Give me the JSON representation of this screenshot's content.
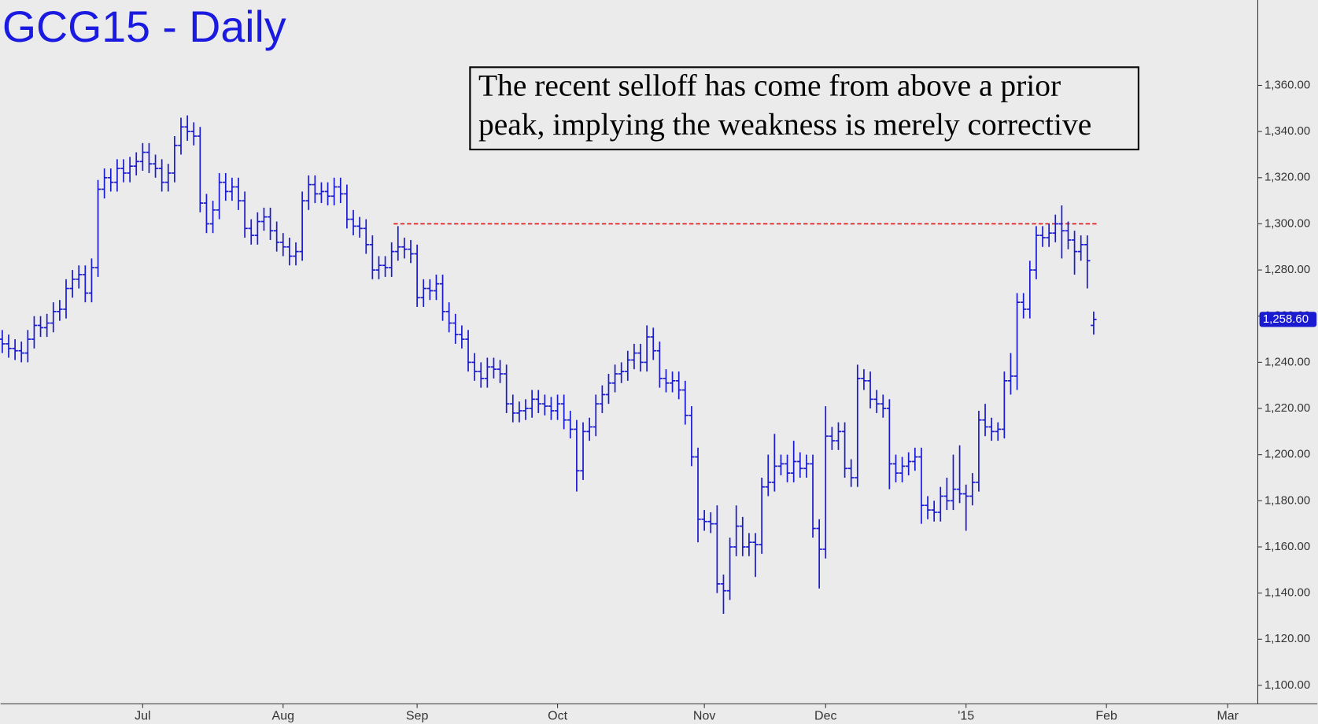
{
  "chart_data": {
    "type": "ohlc",
    "title": "GCG15 - Daily",
    "annotation": [
      "The recent selloff has come from above a prior",
      "peak, implying the weakness is merely corrective"
    ],
    "categories": [
      null,
      null,
      null,
      null,
      null,
      null,
      null,
      null,
      null,
      null,
      null,
      null,
      null,
      null,
      null,
      null,
      null,
      null,
      null,
      null,
      null,
      null,
      "Jul",
      null,
      null,
      null,
      null,
      null,
      null,
      null,
      null,
      null,
      null,
      null,
      null,
      null,
      null,
      null,
      null,
      null,
      null,
      null,
      null,
      null,
      "Aug",
      null,
      null,
      null,
      null,
      null,
      null,
      null,
      null,
      null,
      null,
      null,
      null,
      null,
      null,
      null,
      null,
      null,
      null,
      null,
      null,
      "Sep",
      null,
      null,
      null,
      null,
      null,
      null,
      null,
      null,
      null,
      null,
      null,
      null,
      null,
      null,
      null,
      null,
      null,
      null,
      null,
      null,
      null,
      "Oct",
      null,
      null,
      null,
      null,
      null,
      null,
      null,
      null,
      null,
      null,
      null,
      null,
      null,
      null,
      null,
      null,
      null,
      null,
      null,
      null,
      null,
      null,
      "Nov",
      null,
      null,
      null,
      null,
      null,
      null,
      null,
      null,
      null,
      null,
      null,
      null,
      null,
      null,
      null,
      null,
      null,
      null,
      "Dec",
      null,
      null,
      null,
      null,
      null,
      null,
      null,
      null,
      null,
      null,
      null,
      null,
      null,
      null,
      null,
      null,
      null,
      null,
      null,
      null,
      null,
      "'15",
      null,
      null,
      null,
      null,
      null,
      null,
      null,
      null,
      null,
      null,
      null,
      null,
      null,
      null,
      null,
      null,
      null,
      null,
      null,
      null,
      null,
      "Feb",
      null,
      null,
      null,
      null,
      null,
      null,
      null,
      null,
      null,
      null,
      null,
      null,
      null,
      null,
      null,
      null,
      null,
      null,
      "Mar",
      null,
      null,
      null,
      null
    ],
    "open": [
      1250,
      1248,
      1246,
      1245,
      1244,
      1250,
      1256,
      1255,
      1257,
      1262,
      1263,
      1272,
      1276,
      1278,
      1270,
      1281,
      1315,
      1320,
      1318,
      1324,
      1322,
      1325,
      1327,
      1331,
      1326,
      1324,
      1318,
      1322,
      1334,
      1342,
      1340,
      1338,
      1309,
      1300,
      1306,
      1318,
      1314,
      1316,
      1310,
      1298,
      1295,
      1301,
      1303,
      1297,
      1292,
      1290,
      1286,
      1288,
      1310,
      1317,
      1313,
      1314,
      1312,
      1316,
      1313,
      1302,
      1299,
      1298,
      1291,
      1280,
      1282,
      1281,
      1288,
      1290,
      1289,
      1287,
      1268,
      1272,
      1271,
      1274,
      1262,
      1257,
      1252,
      1250,
      1240,
      1236,
      1233,
      1238,
      1237,
      1235,
      1222,
      1218,
      1219,
      1220,
      1224,
      1222,
      1221,
      1219,
      1222,
      1215,
      1211,
      1193,
      1210,
      1212,
      1222,
      1226,
      1231,
      1235,
      1236,
      1241,
      1244,
      1240,
      1251,
      1245,
      1233,
      1231,
      1232,
      1228,
      1217,
      1199,
      1172,
      1171,
      1170,
      1144,
      1141,
      1160,
      1169,
      1160,
      1162,
      1161,
      1186,
      1188,
      1195,
      1196,
      1192,
      1197,
      1194,
      1196,
      1168,
      1159,
      1208,
      1206,
      1210,
      1194,
      1190,
      1233,
      1232,
      1224,
      1222,
      1220,
      1196,
      1192,
      1195,
      1197,
      1199,
      1178,
      1176,
      1175,
      1182,
      1180,
      1185,
      1183,
      1182,
      1188,
      1215,
      1212,
      1210,
      1211,
      1232,
      1234,
      1266,
      1263,
      1280,
      1295,
      1294,
      1296,
      1300,
      1297,
      1293,
      1288,
      1291,
      1256,
      null,
      null,
      null,
      null,
      null,
      null,
      null,
      null,
      null,
      null,
      null,
      null,
      null,
      null,
      null,
      null,
      null,
      null,
      null,
      null,
      null,
      null,
      null,
      null,
      null
    ],
    "high": [
      1254,
      1252,
      1250,
      1249,
      1254,
      1260,
      1260,
      1261,
      1266,
      1267,
      1276,
      1280,
      1282,
      1282,
      1285,
      1319,
      1324,
      1324,
      1328,
      1328,
      1329,
      1331,
      1335,
      1335,
      1330,
      1328,
      1326,
      1338,
      1346,
      1347,
      1344,
      1342,
      1313,
      1310,
      1322,
      1322,
      1320,
      1320,
      1314,
      1302,
      1305,
      1307,
      1307,
      1301,
      1296,
      1294,
      1292,
      1314,
      1321,
      1321,
      1318,
      1318,
      1320,
      1320,
      1317,
      1306,
      1303,
      1302,
      1295,
      1286,
      1286,
      1292,
      1299,
      1294,
      1293,
      1291,
      1276,
      1276,
      1278,
      1278,
      1266,
      1261,
      1256,
      1254,
      1244,
      1240,
      1242,
      1242,
      1241,
      1239,
      1226,
      1223,
      1224,
      1228,
      1228,
      1226,
      1225,
      1226,
      1226,
      1219,
      1215,
      1214,
      1216,
      1226,
      1230,
      1235,
      1239,
      1240,
      1245,
      1248,
      1248,
      1256,
      1255,
      1249,
      1237,
      1236,
      1236,
      1232,
      1221,
      1203,
      1176,
      1175,
      1178,
      1148,
      1164,
      1178,
      1173,
      1166,
      1166,
      1190,
      1200,
      1209,
      1200,
      1200,
      1206,
      1201,
      1200,
      1200,
      1172,
      1221,
      1212,
      1214,
      1214,
      1198,
      1239,
      1237,
      1236,
      1228,
      1226,
      1224,
      1200,
      1199,
      1201,
      1203,
      1203,
      1182,
      1180,
      1186,
      1190,
      1200,
      1204,
      1187,
      1192,
      1219,
      1222,
      1216,
      1214,
      1236,
      1244,
      1270,
      1270,
      1284,
      1299,
      1299,
      1300,
      1304,
      1308,
      1301,
      1297,
      1295,
      1295,
      1262,
      null,
      null,
      null,
      null,
      null,
      null,
      null,
      null,
      null,
      null,
      null,
      null,
      null,
      null,
      null,
      null,
      null,
      null,
      null,
      null,
      null,
      null,
      null,
      null,
      null
    ],
    "low": [
      1244,
      1242,
      1241,
      1240,
      1240,
      1246,
      1251,
      1251,
      1253,
      1258,
      1259,
      1268,
      1272,
      1266,
      1266,
      1277,
      1311,
      1314,
      1314,
      1318,
      1318,
      1321,
      1323,
      1322,
      1320,
      1314,
      1314,
      1318,
      1330,
      1336,
      1334,
      1305,
      1296,
      1296,
      1302,
      1310,
      1310,
      1306,
      1294,
      1291,
      1291,
      1297,
      1293,
      1288,
      1286,
      1282,
      1282,
      1284,
      1306,
      1309,
      1309,
      1308,
      1308,
      1309,
      1298,
      1295,
      1294,
      1287,
      1276,
      1276,
      1277,
      1277,
      1284,
      1285,
      1283,
      1264,
      1264,
      1267,
      1267,
      1258,
      1253,
      1248,
      1246,
      1236,
      1232,
      1229,
      1229,
      1233,
      1231,
      1218,
      1214,
      1214,
      1215,
      1216,
      1218,
      1217,
      1215,
      1215,
      1211,
      1207,
      1184,
      1189,
      1206,
      1208,
      1218,
      1222,
      1227,
      1231,
      1232,
      1237,
      1236,
      1236,
      1241,
      1229,
      1227,
      1227,
      1224,
      1213,
      1195,
      1162,
      1167,
      1166,
      1140,
      1131,
      1137,
      1156,
      1156,
      1156,
      1147,
      1157,
      1182,
      1184,
      1191,
      1188,
      1188,
      1190,
      1190,
      1164,
      1142,
      1155,
      1202,
      1202,
      1190,
      1186,
      1186,
      1228,
      1220,
      1218,
      1216,
      1185,
      1188,
      1188,
      1191,
      1193,
      1170,
      1172,
      1171,
      1171,
      1176,
      1176,
      1179,
      1167,
      1178,
      1184,
      1208,
      1206,
      1206,
      1207,
      1226,
      1228,
      1259,
      1259,
      1276,
      1290,
      1290,
      1292,
      1285,
      1289,
      1278,
      1284,
      1272,
      1252,
      null,
      null,
      null,
      null,
      null,
      null,
      null,
      null,
      null,
      null,
      null,
      null,
      null,
      null,
      null,
      null,
      null,
      null,
      null,
      null,
      null,
      null,
      null,
      null,
      null
    ],
    "close": [
      1248,
      1246,
      1245,
      1244,
      1250,
      1256,
      1255,
      1257,
      1262,
      1263,
      1272,
      1276,
      1278,
      1270,
      1281,
      1315,
      1320,
      1318,
      1324,
      1322,
      1325,
      1327,
      1331,
      1326,
      1324,
      1318,
      1322,
      1334,
      1342,
      1340,
      1338,
      1309,
      1300,
      1306,
      1318,
      1314,
      1316,
      1310,
      1298,
      1295,
      1301,
      1303,
      1297,
      1292,
      1290,
      1286,
      1288,
      1310,
      1317,
      1313,
      1314,
      1312,
      1316,
      1313,
      1302,
      1299,
      1298,
      1291,
      1280,
      1282,
      1281,
      1288,
      1290,
      1289,
      1287,
      1268,
      1272,
      1271,
      1274,
      1262,
      1257,
      1252,
      1250,
      1240,
      1236,
      1233,
      1238,
      1237,
      1235,
      1222,
      1218,
      1219,
      1220,
      1224,
      1222,
      1221,
      1219,
      1222,
      1215,
      1211,
      1193,
      1210,
      1212,
      1222,
      1226,
      1231,
      1235,
      1236,
      1241,
      1244,
      1240,
      1251,
      1245,
      1233,
      1231,
      1232,
      1228,
      1217,
      1199,
      1172,
      1171,
      1170,
      1144,
      1141,
      1160,
      1169,
      1160,
      1162,
      1161,
      1186,
      1188,
      1195,
      1196,
      1192,
      1197,
      1194,
      1196,
      1168,
      1159,
      1208,
      1206,
      1210,
      1194,
      1190,
      1233,
      1232,
      1224,
      1222,
      1220,
      1196,
      1192,
      1195,
      1197,
      1199,
      1178,
      1176,
      1175,
      1182,
      1180,
      1185,
      1183,
      1182,
      1188,
      1215,
      1212,
      1210,
      1211,
      1232,
      1234,
      1266,
      1263,
      1280,
      1295,
      1294,
      1296,
      1300,
      1297,
      1293,
      1288,
      1291,
      1284,
      1258.6,
      null,
      null,
      null,
      null,
      null,
      null,
      null,
      null,
      null,
      null,
      null,
      null,
      null,
      null,
      null,
      null,
      null,
      null,
      null,
      null,
      null,
      null,
      null,
      null,
      null
    ],
    "close_label": "1,258.60",
    "color": "#1a1ad0",
    "ylim": [
      1092,
      1397
    ],
    "yticks": [
      {
        "value": 1100,
        "label": "1,100.00"
      },
      {
        "value": 1120,
        "label": "1,120.00"
      },
      {
        "value": 1140,
        "label": "1,140.00"
      },
      {
        "value": 1160,
        "label": "1,160.00"
      },
      {
        "value": 1180,
        "label": "1,180.00"
      },
      {
        "value": 1200,
        "label": "1,200.00"
      },
      {
        "value": 1220,
        "label": "1,220.00"
      },
      {
        "value": 1240,
        "label": "1,240.00"
      },
      {
        "value": 1260,
        "label": "1,260.00"
      },
      {
        "value": 1280,
        "label": "1,280.00"
      },
      {
        "value": 1300,
        "label": "1,300.00"
      },
      {
        "value": 1320,
        "label": "1,320.00"
      },
      {
        "value": 1340,
        "label": "1,340.00"
      },
      {
        "value": 1360,
        "label": "1,360.00"
      }
    ],
    "reference_line": {
      "value": 1300,
      "color": "#dd1111"
    },
    "grid": false
  }
}
